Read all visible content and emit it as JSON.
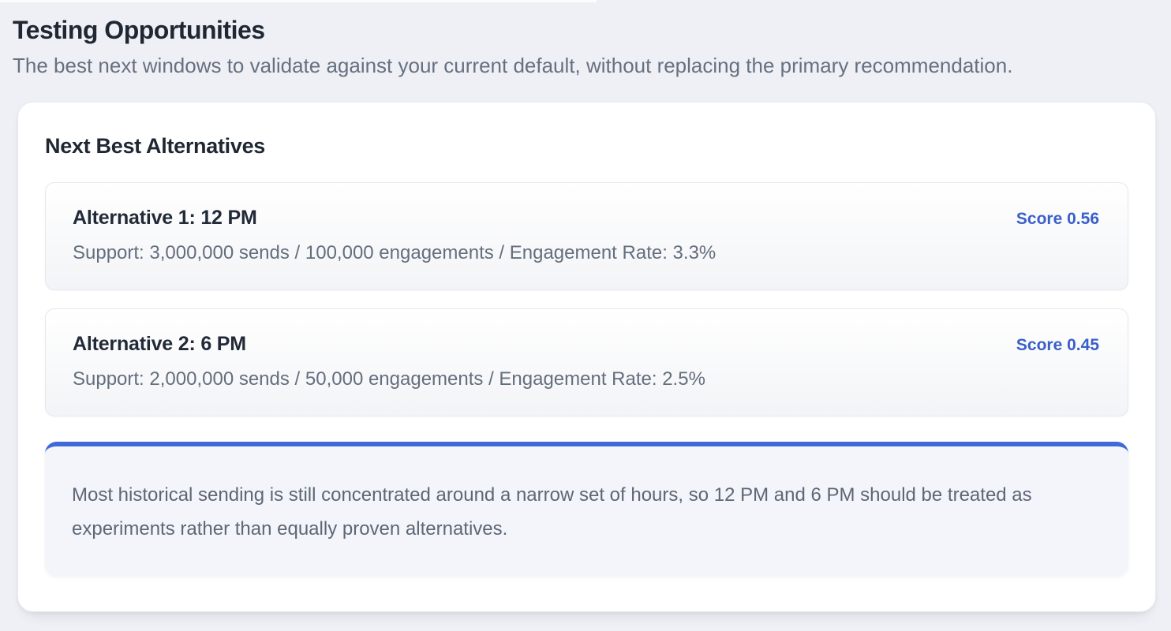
{
  "page": {
    "title": "Testing Opportunities",
    "subtitle": "The best next windows to validate against your current default, without replacing the primary recommendation."
  },
  "panel": {
    "heading": "Next Best Alternatives",
    "alternatives": [
      {
        "title": "Alternative 1: 12 PM",
        "score_label": "Score 0.56",
        "support": "Support: 3,000,000 sends / 100,000 engagements / Engagement Rate: 3.3%"
      },
      {
        "title": "Alternative 2: 6 PM",
        "score_label": "Score 0.45",
        "support": "Support: 2,000,000 sends / 50,000 engagements / Engagement Rate: 2.5%"
      }
    ],
    "note": "Most historical sending is still concentrated around a narrow set of hours, so 12 PM and 6 PM should be treated as experiments rather than equally proven alternatives."
  },
  "colors": {
    "page_background": "#eef0f5",
    "panel_background": "#ffffff",
    "accent_blue_border": "#3f68d8",
    "score_blue": "#3a5fca",
    "heading_text": "#1f2733",
    "muted_text": "#646e7e",
    "note_background": "#f3f5fa"
  }
}
